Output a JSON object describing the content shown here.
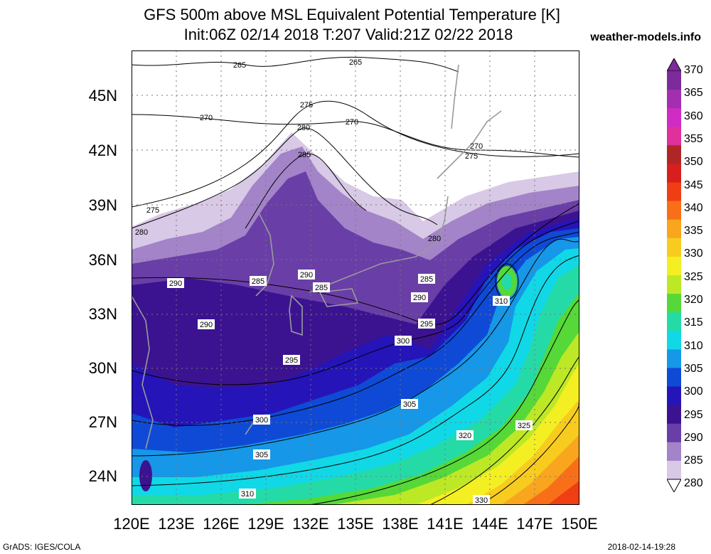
{
  "header": {
    "title_line1": "GFS 500m above MSL Equivalent Potential Temperature [K]",
    "title_line2": "Init:06Z 02/14 2018 T:207 Valid:21Z 02/22 2018",
    "site": "weather-models.info"
  },
  "axes": {
    "lat_labels": [
      "45N",
      "42N",
      "39N",
      "36N",
      "33N",
      "30N",
      "27N",
      "24N"
    ],
    "lon_labels": [
      "120E",
      "123E",
      "126E",
      "129E",
      "132E",
      "135E",
      "138E",
      "141E",
      "144E",
      "147E",
      "150E"
    ]
  },
  "colorbar": {
    "labels": [
      "370",
      "365",
      "360",
      "355",
      "350",
      "345",
      "340",
      "335",
      "330",
      "325",
      "320",
      "315",
      "310",
      "305",
      "300",
      "295",
      "290",
      "285",
      "280"
    ],
    "colors": [
      "#7c2a9c",
      "#a12fb0",
      "#d02cc3",
      "#e0309a",
      "#b02626",
      "#d81e1e",
      "#f03e14",
      "#f96f18",
      "#f9a51e",
      "#f7cc1f",
      "#f4ef22",
      "#bde826",
      "#55d838",
      "#24dba8",
      "#10d8e6",
      "#1697e8",
      "#0f4ad6",
      "#2514b8",
      "#3b1391",
      "#6a3ea7",
      "#a384c8",
      "#d8c9e6"
    ]
  },
  "contours": {
    "labels": [
      "265",
      "265",
      "275",
      "270",
      "270",
      "280",
      "285",
      "275",
      "270",
      "275",
      "280",
      "280",
      "290",
      "285",
      "290",
      "285",
      "285",
      "290",
      "290",
      "295",
      "295",
      "300",
      "310",
      "305",
      "300",
      "320",
      "325",
      "305",
      "310",
      "330"
    ]
  },
  "footer": {
    "left": "GrADS: IGES/COLA",
    "right": "2018-02-14-19:28"
  }
}
